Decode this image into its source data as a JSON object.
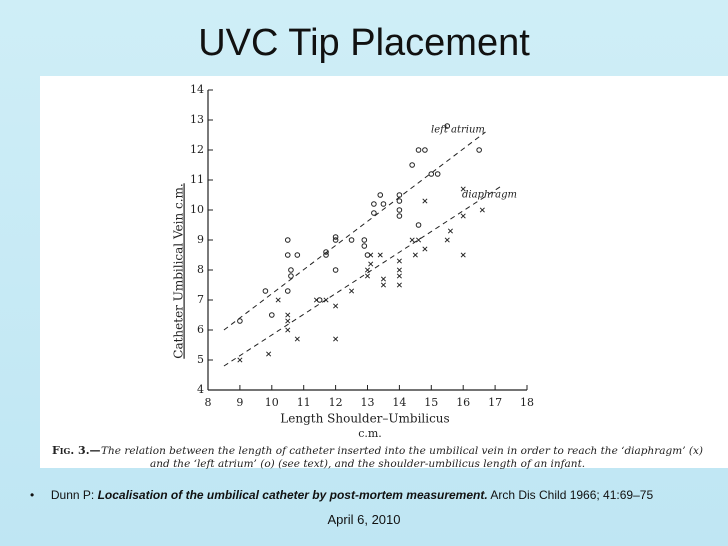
{
  "slide": {
    "title": "UVC Tip Placement",
    "citation_author": "Dunn P:",
    "citation_article": "Localisation of the umbilical catheter by post-mortem measurement.",
    "citation_journal": "Arch Dis Child 1966; 41:69–75",
    "date": "April 6, 2010"
  },
  "chart_data": {
    "type": "scatter",
    "caption_label": "Fig. 3.—",
    "caption_lines": [
      "The relation between the length of catheter inserted into the umbilical vein in order to reach the ‘diaphragm’ (x)",
      "and the ‘left atrium’ (o) (see text), and the shoulder-umbilicus length of an infant."
    ],
    "xlabel": "Length  Shoulder–Umbilicus",
    "xlabel_unit": "c.m.",
    "ylabel": "Catheter  Umbilical  Vein   c.m.",
    "xlim": [
      8,
      18
    ],
    "xticks": [
      8,
      9,
      10,
      11,
      12,
      13,
      14,
      15,
      16,
      17,
      18
    ],
    "ylim": [
      4,
      14
    ],
    "yticks": [
      4,
      5,
      6,
      7,
      8,
      9,
      10,
      11,
      12,
      13,
      14
    ],
    "series": [
      {
        "name": "left atrium",
        "marker": "o",
        "color": "#222222",
        "x": [
          9.0,
          9.8,
          10.0,
          10.5,
          10.5,
          10.6,
          10.6,
          10.5,
          10.8,
          11.5,
          11.7,
          11.7,
          12.0,
          12.0,
          12.0,
          12.5,
          12.9,
          12.9,
          13.2,
          13.2,
          13.4,
          13.5,
          14.0,
          14.0,
          14.0,
          14.4,
          14.6,
          14.8,
          15.0,
          15.2,
          15.5,
          16.5,
          13.0,
          14.6,
          14.0
        ],
        "values": [
          6.3,
          7.3,
          6.5,
          9.0,
          8.5,
          8.0,
          7.8,
          7.3,
          8.5,
          7.0,
          8.5,
          8.6,
          9.0,
          9.1,
          8.0,
          9.0,
          9.0,
          8.8,
          9.9,
          10.2,
          10.5,
          10.2,
          10.3,
          10.0,
          9.8,
          11.5,
          12.0,
          12.0,
          11.2,
          11.2,
          12.8,
          12.0,
          8.5,
          9.5,
          10.5
        ]
      },
      {
        "name": "diaphragm",
        "marker": "x",
        "color": "#222222",
        "x": [
          9.0,
          9.9,
          10.2,
          10.5,
          10.5,
          10.5,
          10.8,
          11.4,
          11.7,
          12.0,
          12.0,
          12.5,
          13.0,
          13.0,
          13.1,
          13.1,
          13.4,
          13.5,
          13.5,
          14.0,
          14.0,
          14.0,
          14.4,
          14.5,
          14.6,
          14.8,
          14.8,
          15.6,
          15.5,
          16.0,
          16.0,
          16.6,
          16.0,
          14.0
        ],
        "values": [
          5.0,
          5.2,
          7.0,
          6.5,
          6.3,
          6.0,
          5.7,
          7.0,
          7.0,
          6.8,
          5.7,
          7.3,
          7.8,
          8.0,
          8.5,
          8.2,
          8.5,
          7.5,
          7.7,
          8.0,
          7.8,
          8.3,
          9.0,
          8.5,
          9.0,
          10.3,
          8.7,
          9.3,
          9.0,
          9.8,
          8.5,
          10.0,
          10.7,
          7.5
        ]
      }
    ],
    "trend_lines": [
      {
        "x": [
          8.5,
          16.7
        ],
        "values": [
          6.0,
          12.6
        ]
      },
      {
        "x": [
          8.5,
          17.2
        ],
        "values": [
          4.8,
          10.8
        ]
      }
    ]
  }
}
